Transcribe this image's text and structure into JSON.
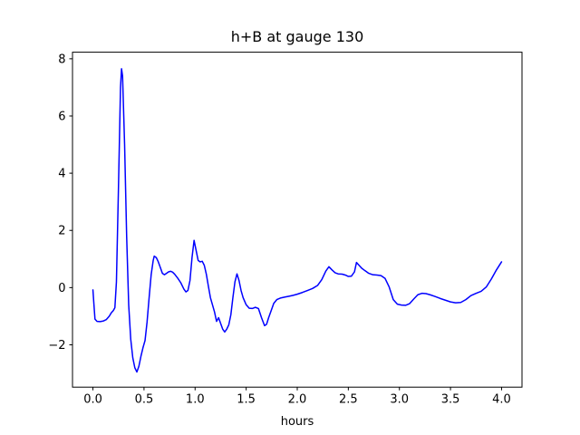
{
  "figure": {
    "title": "h+B at gauge 130",
    "xlabel": "hours"
  },
  "chart_data": {
    "type": "line",
    "title": "h+B at gauge 130",
    "xlabel": "hours",
    "ylabel": "",
    "grid": false,
    "legend": null,
    "line_color": "#0000ff",
    "line_width": 1.5,
    "spine_color": "#000000",
    "xlim": [
      -0.2,
      4.2
    ],
    "ylim": [
      -3.48,
      8.23
    ],
    "xticks": [
      0.0,
      0.5,
      1.0,
      1.5,
      2.0,
      2.5,
      3.0,
      3.5,
      4.0
    ],
    "xtick_labels": [
      "0.0",
      "0.5",
      "1.0",
      "1.5",
      "2.0",
      "2.5",
      "3.0",
      "3.5",
      "4.0"
    ],
    "yticks": [
      -2,
      0,
      2,
      4,
      6,
      8
    ],
    "ytick_labels": [
      "−2",
      "0",
      "2",
      "4",
      "6",
      "8"
    ],
    "series": [
      {
        "name": "h+B",
        "x": [
          0.0,
          0.01,
          0.02,
          0.04,
          0.07,
          0.1,
          0.13,
          0.16,
          0.18,
          0.2,
          0.215,
          0.23,
          0.25,
          0.27,
          0.28,
          0.29,
          0.31,
          0.33,
          0.35,
          0.37,
          0.39,
          0.41,
          0.43,
          0.45,
          0.47,
          0.49,
          0.51,
          0.53,
          0.55,
          0.57,
          0.59,
          0.6,
          0.62,
          0.64,
          0.66,
          0.68,
          0.7,
          0.72,
          0.74,
          0.76,
          0.78,
          0.8,
          0.83,
          0.86,
          0.89,
          0.91,
          0.93,
          0.95,
          0.97,
          0.99,
          1.01,
          1.03,
          1.05,
          1.07,
          1.09,
          1.11,
          1.13,
          1.15,
          1.17,
          1.19,
          1.21,
          1.23,
          1.25,
          1.27,
          1.29,
          1.31,
          1.33,
          1.35,
          1.37,
          1.39,
          1.41,
          1.43,
          1.45,
          1.47,
          1.5,
          1.53,
          1.56,
          1.59,
          1.62,
          1.65,
          1.68,
          1.7,
          1.72,
          1.74,
          1.77,
          1.8,
          1.84,
          1.88,
          1.92,
          1.96,
          2.0,
          2.05,
          2.1,
          2.15,
          2.2,
          2.24,
          2.28,
          2.31,
          2.34,
          2.37,
          2.4,
          2.44,
          2.47,
          2.5,
          2.53,
          2.56,
          2.58,
          2.6,
          2.63,
          2.66,
          2.7,
          2.74,
          2.78,
          2.82,
          2.86,
          2.9,
          2.94,
          2.98,
          3.02,
          3.06,
          3.1,
          3.14,
          3.18,
          3.22,
          3.26,
          3.3,
          3.35,
          3.4,
          3.45,
          3.5,
          3.55,
          3.6,
          3.65,
          3.7,
          3.75,
          3.8,
          3.85,
          3.9,
          3.95,
          4.0
        ],
        "y": [
          -0.08,
          -0.6,
          -1.1,
          -1.18,
          -1.19,
          -1.17,
          -1.12,
          -1.0,
          -0.88,
          -0.8,
          -0.7,
          0.2,
          3.5,
          7.0,
          7.65,
          7.4,
          5.0,
          1.8,
          -0.6,
          -1.8,
          -2.45,
          -2.8,
          -2.95,
          -2.75,
          -2.4,
          -2.1,
          -1.85,
          -1.2,
          -0.35,
          0.45,
          0.95,
          1.1,
          1.05,
          0.9,
          0.7,
          0.5,
          0.45,
          0.5,
          0.55,
          0.57,
          0.54,
          0.47,
          0.33,
          0.17,
          -0.05,
          -0.15,
          -0.1,
          0.25,
          1.05,
          1.65,
          1.3,
          0.95,
          0.9,
          0.92,
          0.78,
          0.47,
          0.05,
          -0.35,
          -0.6,
          -0.85,
          -1.18,
          -1.05,
          -1.25,
          -1.45,
          -1.55,
          -1.45,
          -1.3,
          -0.95,
          -0.35,
          0.2,
          0.48,
          0.25,
          -0.1,
          -0.35,
          -0.6,
          -0.72,
          -0.73,
          -0.69,
          -0.73,
          -1.05,
          -1.33,
          -1.28,
          -1.05,
          -0.85,
          -0.55,
          -0.42,
          -0.36,
          -0.33,
          -0.3,
          -0.27,
          -0.23,
          -0.17,
          -0.1,
          -0.03,
          0.08,
          0.28,
          0.58,
          0.73,
          0.62,
          0.52,
          0.48,
          0.47,
          0.44,
          0.39,
          0.4,
          0.55,
          0.88,
          0.8,
          0.68,
          0.6,
          0.5,
          0.45,
          0.44,
          0.42,
          0.32,
          0.02,
          -0.42,
          -0.58,
          -0.61,
          -0.62,
          -0.56,
          -0.4,
          -0.25,
          -0.2,
          -0.21,
          -0.25,
          -0.31,
          -0.38,
          -0.44,
          -0.5,
          -0.53,
          -0.52,
          -0.42,
          -0.28,
          -0.2,
          -0.13,
          0.02,
          0.3,
          0.62,
          0.9
        ]
      }
    ]
  }
}
